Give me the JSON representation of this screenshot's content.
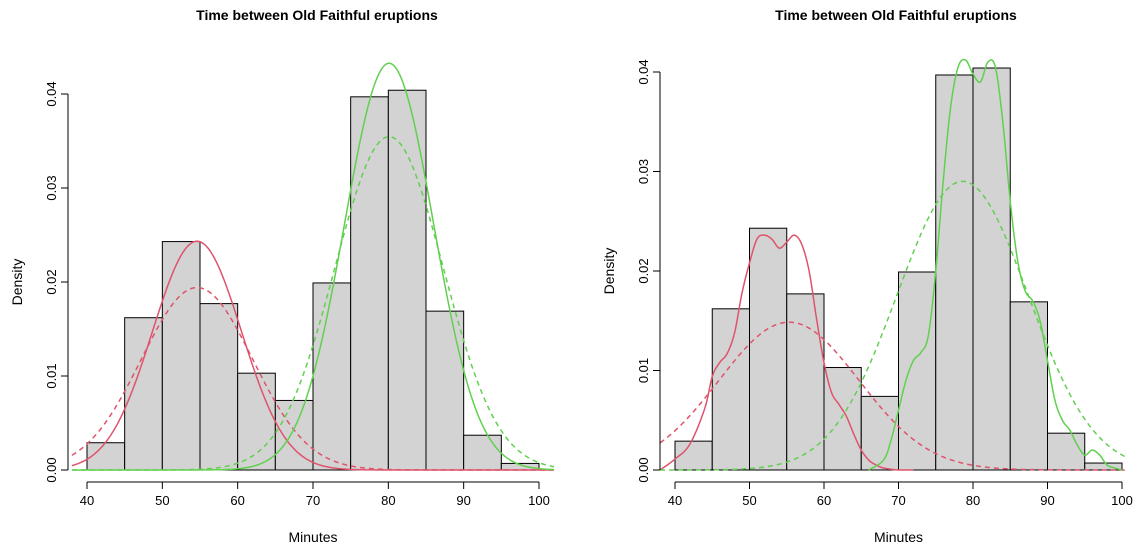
{
  "chart_data": [
    {
      "type": "bar",
      "title": "Time between Old Faithful eruptions",
      "xlabel": "Minutes",
      "ylabel": "Density",
      "xlim": [
        38,
        102
      ],
      "ylim": [
        0,
        0.044
      ],
      "x_ticks": [
        40,
        50,
        60,
        70,
        80,
        90,
        100
      ],
      "y_ticks": [
        0.0,
        0.01,
        0.02,
        0.03,
        0.04
      ],
      "y_tick_labels": [
        "0.00",
        "0.01",
        "0.02",
        "0.03",
        "0.04"
      ],
      "bins": [
        [
          40,
          45
        ],
        [
          45,
          50
        ],
        [
          50,
          55
        ],
        [
          55,
          60
        ],
        [
          60,
          65
        ],
        [
          65,
          70
        ],
        [
          70,
          75
        ],
        [
          75,
          80
        ],
        [
          80,
          85
        ],
        [
          85,
          90
        ],
        [
          90,
          95
        ],
        [
          95,
          100
        ]
      ],
      "values": [
        0.0029,
        0.0162,
        0.0243,
        0.0177,
        0.0103,
        0.0074,
        0.0199,
        0.0397,
        0.0404,
        0.0169,
        0.0037,
        0.0007
      ],
      "bar_color": "#D3D3D3",
      "grid": false,
      "curves": [
        {
          "color": "#DF536B",
          "style": "solid",
          "shape": "normal",
          "mu": 54.6,
          "sigma": 5.9,
          "weight": 0.36
        },
        {
          "color": "#DF536B",
          "style": "dashed",
          "shape": "normal",
          "mu": 54.6,
          "sigma": 7.4,
          "weight": 0.36
        },
        {
          "color": "#61D04F",
          "style": "solid",
          "shape": "normal",
          "mu": 80.1,
          "sigma": 5.9,
          "weight": 0.64
        },
        {
          "color": "#61D04F",
          "style": "dashed",
          "shape": "normal",
          "mu": 80.1,
          "sigma": 7.2,
          "weight": 0.64
        }
      ]
    },
    {
      "type": "bar",
      "title": "Time between Old Faithful eruptions",
      "xlabel": "Minutes",
      "ylabel": "Density",
      "xlim": [
        38,
        102
      ],
      "ylim": [
        0,
        0.0405
      ],
      "x_ticks": [
        40,
        50,
        60,
        70,
        80,
        90,
        100
      ],
      "y_ticks": [
        0.0,
        0.01,
        0.02,
        0.03,
        0.04
      ],
      "y_tick_labels": [
        "0.00",
        "0.01",
        "0.02",
        "0.03",
        "0.04"
      ],
      "bins": [
        [
          40,
          45
        ],
        [
          45,
          50
        ],
        [
          50,
          55
        ],
        [
          55,
          60
        ],
        [
          60,
          65
        ],
        [
          65,
          70
        ],
        [
          70,
          75
        ],
        [
          75,
          80
        ],
        [
          80,
          85
        ],
        [
          85,
          90
        ],
        [
          90,
          95
        ],
        [
          95,
          100
        ]
      ],
      "values": [
        0.0029,
        0.0162,
        0.0243,
        0.0177,
        0.0103,
        0.0074,
        0.0199,
        0.0397,
        0.0404,
        0.0169,
        0.0037,
        0.0007
      ],
      "bar_color": "#D3D3D3",
      "grid": false,
      "curves": [
        {
          "color": "#DF536B",
          "style": "solid",
          "shape": "points",
          "x": [
            38,
            40,
            42,
            44,
            45,
            46,
            47,
            48,
            49,
            50,
            51,
            52,
            53,
            54,
            55,
            56,
            57,
            58,
            59,
            60,
            61,
            62,
            63,
            64,
            65,
            66,
            67,
            68,
            70,
            72
          ],
          "y": [
            0.0,
            0.0011,
            0.0026,
            0.0062,
            0.0094,
            0.0108,
            0.0117,
            0.0138,
            0.0178,
            0.0208,
            0.0232,
            0.0236,
            0.0232,
            0.0223,
            0.0229,
            0.0236,
            0.0227,
            0.02,
            0.0152,
            0.0108,
            0.0078,
            0.0066,
            0.0054,
            0.0036,
            0.002,
            0.001,
            0.0005,
            0.0002,
            0.0,
            0.0
          ]
        },
        {
          "color": "#DF536B",
          "style": "dashed",
          "shape": "normal",
          "mu": 55.3,
          "sigma": 9.4,
          "weight": 0.35
        },
        {
          "color": "#61D04F",
          "style": "solid",
          "shape": "points",
          "x": [
            66,
            68,
            69,
            70,
            71,
            72,
            73,
            74,
            75,
            76,
            77,
            78,
            79,
            80,
            81,
            82,
            83,
            84,
            85,
            86,
            87,
            88,
            89,
            90,
            91,
            92,
            93,
            94,
            95,
            96,
            97,
            98,
            99,
            100
          ],
          "y": [
            0.0,
            0.001,
            0.003,
            0.006,
            0.009,
            0.011,
            0.0118,
            0.0135,
            0.02,
            0.029,
            0.0365,
            0.0405,
            0.0412,
            0.0398,
            0.039,
            0.041,
            0.0405,
            0.035,
            0.027,
            0.021,
            0.018,
            0.017,
            0.015,
            0.011,
            0.007,
            0.005,
            0.004,
            0.0025,
            0.0015,
            0.002,
            0.0015,
            0.0005,
            0.0002,
            0.0
          ]
        },
        {
          "color": "#61D04F",
          "style": "dashed",
          "shape": "normal",
          "mu": 78.6,
          "sigma": 8.8,
          "weight": 0.64
        }
      ]
    }
  ]
}
